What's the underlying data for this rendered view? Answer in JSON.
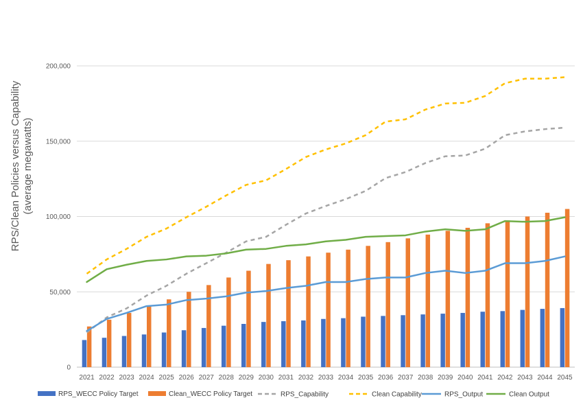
{
  "chart_data": {
    "type": "bar",
    "title": "",
    "xlabel": "",
    "ylabel_line1": "RPS/Clean Policies versus Capability",
    "ylabel_line2": "(average megawatts)",
    "ylim": [
      0,
      200000
    ],
    "yticks": [
      0,
      50000,
      100000,
      150000,
      200000
    ],
    "ytick_labels": [
      "0",
      "50,000",
      "100,000",
      "150,000",
      "200,000"
    ],
    "grid": "horizontal",
    "legend_position": "bottom",
    "categories": [
      "2021",
      "2022",
      "2023",
      "2024",
      "2025",
      "2026",
      "2027",
      "2028",
      "2029",
      "2030",
      "2031",
      "2032",
      "2033",
      "2034",
      "2035",
      "2036",
      "2037",
      "2038",
      "2039",
      "2040",
      "2041",
      "2042",
      "2043",
      "2044",
      "2045"
    ],
    "bar_series": [
      {
        "name": "RPS_WECC Policy Target",
        "color": "#4472c4",
        "values": [
          18000,
          19500,
          20700,
          21700,
          23000,
          24500,
          26000,
          27500,
          28700,
          30000,
          30500,
          31000,
          32000,
          32500,
          33500,
          34000,
          34500,
          35000,
          35500,
          36000,
          36800,
          37200,
          38000,
          38700,
          39200
        ]
      },
      {
        "name": "Clean_WECC Policy Target",
        "color": "#ed7d31",
        "values": [
          27000,
          31500,
          36000,
          40500,
          45000,
          50000,
          54500,
          59500,
          64000,
          68500,
          71000,
          73500,
          76000,
          78000,
          80500,
          83000,
          85500,
          88000,
          90500,
          92500,
          95500,
          97500,
          100000,
          102500,
          105000
        ]
      }
    ],
    "line_series": [
      {
        "name": "RPS_Capability",
        "color": "#a5a5a5",
        "dashed": true,
        "values": [
          23000,
          33000,
          39000,
          47500,
          54000,
          62000,
          69000,
          76000,
          83500,
          86500,
          94500,
          102000,
          107000,
          111500,
          117000,
          125500,
          129500,
          135500,
          140000,
          140500,
          145000,
          154000,
          156500,
          158000,
          159000
        ]
      },
      {
        "name": "Clean Capability",
        "color": "#ffc000",
        "dashed": true,
        "values": [
          62000,
          71500,
          78500,
          86500,
          92000,
          99500,
          106500,
          114000,
          121000,
          124000,
          131500,
          139500,
          144500,
          148500,
          154000,
          163000,
          164500,
          171000,
          175000,
          175500,
          180000,
          188500,
          191500,
          191500,
          192500
        ]
      },
      {
        "name": "RPS_Output",
        "color": "#5b9bd5",
        "dashed": false,
        "values": [
          24000,
          32000,
          36000,
          40500,
          41500,
          44500,
          45500,
          47000,
          49500,
          50500,
          52500,
          54000,
          56500,
          56500,
          58500,
          59500,
          59500,
          62500,
          64000,
          62500,
          64000,
          69000,
          69000,
          70500,
          73500
        ]
      },
      {
        "name": "Clean Output",
        "color": "#70ad47",
        "dashed": false,
        "values": [
          56500,
          65000,
          68000,
          70500,
          71500,
          73500,
          74000,
          75500,
          78000,
          78500,
          80500,
          81500,
          83500,
          84500,
          86500,
          87000,
          87500,
          90000,
          91500,
          90500,
          91500,
          97000,
          96500,
          97000,
          99500
        ]
      }
    ],
    "legend_order": [
      "RPS_WECC Policy Target",
      "Clean_WECC Policy Target",
      "RPS_Capability",
      "Clean Capability",
      "RPS_Output",
      "Clean Output"
    ]
  }
}
